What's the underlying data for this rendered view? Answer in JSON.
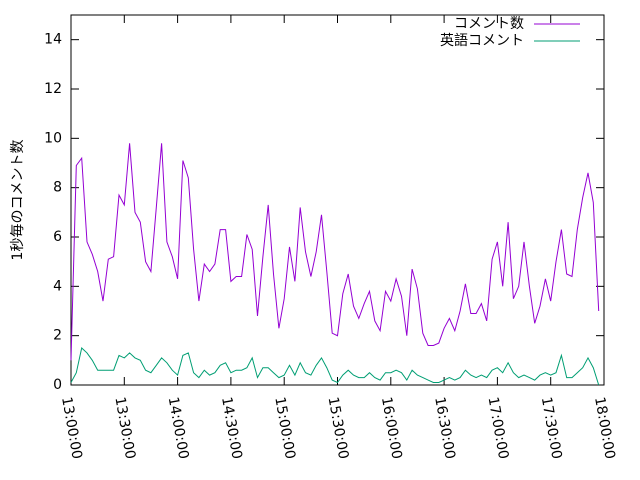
{
  "chart_data": {
    "type": "line",
    "y_label": "1秒毎のコメント数",
    "x": [
      0,
      3,
      6,
      9,
      12,
      15,
      18,
      21,
      24,
      27,
      30,
      33,
      36,
      39,
      42,
      45,
      48,
      51,
      54,
      57,
      60,
      63,
      66,
      69,
      72,
      75,
      78,
      81,
      84,
      87,
      90,
      93,
      96,
      99,
      102,
      105,
      108,
      111,
      114,
      117,
      120,
      123,
      126,
      129,
      132,
      135,
      138,
      141,
      144,
      147,
      150,
      153,
      156,
      159,
      162,
      165,
      168,
      171,
      174,
      177,
      180,
      183,
      186,
      189,
      192,
      195,
      198,
      201,
      204,
      207,
      210,
      213,
      216,
      219,
      222,
      225,
      228,
      231,
      234,
      237,
      240,
      243,
      246,
      249,
      252,
      255,
      258,
      261,
      264,
      267,
      270,
      273,
      276,
      279,
      282,
      285,
      288,
      291,
      294,
      297
    ],
    "series": [
      {
        "name": "コメント数",
        "color": "#9400d3",
        "values": [
          1,
          8.9,
          9.2,
          5.8,
          5.3,
          4.6,
          3.4,
          5.1,
          5.2,
          7.7,
          7.3,
          9.8,
          7,
          6.6,
          5,
          4.6,
          7.2,
          9.8,
          5.8,
          5.2,
          4.3,
          9.1,
          8.4,
          5.5,
          3.4,
          4.9,
          4.6,
          4.9,
          6.3,
          6.3,
          4.2,
          4.4,
          4.4,
          6.1,
          5.5,
          2.8,
          5.2,
          7.3,
          4.5,
          2.3,
          3.5,
          5.6,
          4.2,
          7.2,
          5.4,
          4.4,
          5.4,
          6.9,
          4.6,
          2.1,
          2,
          3.7,
          4.5,
          3.2,
          2.7,
          3.3,
          3.8,
          2.6,
          2.2,
          3.8,
          3.4,
          4.3,
          3.6,
          2,
          4.7,
          3.9,
          2.1,
          1.6,
          1.6,
          1.7,
          2.3,
          2.7,
          2.2,
          3,
          4.1,
          2.9,
          2.9,
          3.3,
          2.6,
          5.1,
          5.8,
          4,
          6.6,
          3.5,
          4,
          5.8,
          4,
          2.5,
          3.2,
          4.3,
          3.4,
          5,
          6.3,
          4.5,
          4.4,
          6.3,
          7.6,
          8.6,
          7.4,
          3
        ]
      },
      {
        "name": "英語コメント",
        "color": "#009e73",
        "values": [
          0.1,
          0.5,
          1.5,
          1.3,
          1,
          0.6,
          0.6,
          0.6,
          0.6,
          1.2,
          1.1,
          1.3,
          1.1,
          1,
          0.6,
          0.5,
          0.8,
          1.1,
          0.9,
          0.6,
          0.4,
          1.2,
          1.3,
          0.5,
          0.3,
          0.6,
          0.4,
          0.5,
          0.8,
          0.9,
          0.5,
          0.6,
          0.6,
          0.7,
          1.1,
          0.3,
          0.7,
          0.7,
          0.5,
          0.3,
          0.4,
          0.8,
          0.4,
          0.9,
          0.5,
          0.4,
          0.8,
          1.1,
          0.7,
          0.2,
          0.1,
          0.4,
          0.6,
          0.4,
          0.3,
          0.3,
          0.5,
          0.3,
          0.2,
          0.5,
          0.5,
          0.6,
          0.5,
          0.2,
          0.6,
          0.4,
          0.3,
          0.2,
          0.1,
          0.1,
          0.2,
          0.3,
          0.2,
          0.3,
          0.6,
          0.4,
          0.3,
          0.4,
          0.3,
          0.6,
          0.7,
          0.5,
          0.9,
          0.5,
          0.3,
          0.4,
          0.3,
          0.2,
          0.4,
          0.5,
          0.4,
          0.5,
          1.2,
          0.3,
          0.3,
          0.5,
          0.7,
          1.1,
          0.7,
          0
        ]
      }
    ],
    "xlim": [
      0,
      300
    ],
    "xticks": [
      {
        "value": 0,
        "label": "13:00:00"
      },
      {
        "value": 30,
        "label": "13:30:00"
      },
      {
        "value": 60,
        "label": "14:00:00"
      },
      {
        "value": 90,
        "label": "14:30:00"
      },
      {
        "value": 120,
        "label": "15:00:00"
      },
      {
        "value": 150,
        "label": "15:30:00"
      },
      {
        "value": 180,
        "label": "16:00:00"
      },
      {
        "value": 210,
        "label": "16:30:00"
      },
      {
        "value": 240,
        "label": "17:00:00"
      },
      {
        "value": 270,
        "label": "17:30:00"
      },
      {
        "value": 300,
        "label": "18:00:00"
      }
    ],
    "ylim": [
      0,
      15
    ],
    "yticks": [
      0,
      2,
      4,
      6,
      8,
      10,
      12,
      14
    ],
    "legend": "top-right"
  }
}
